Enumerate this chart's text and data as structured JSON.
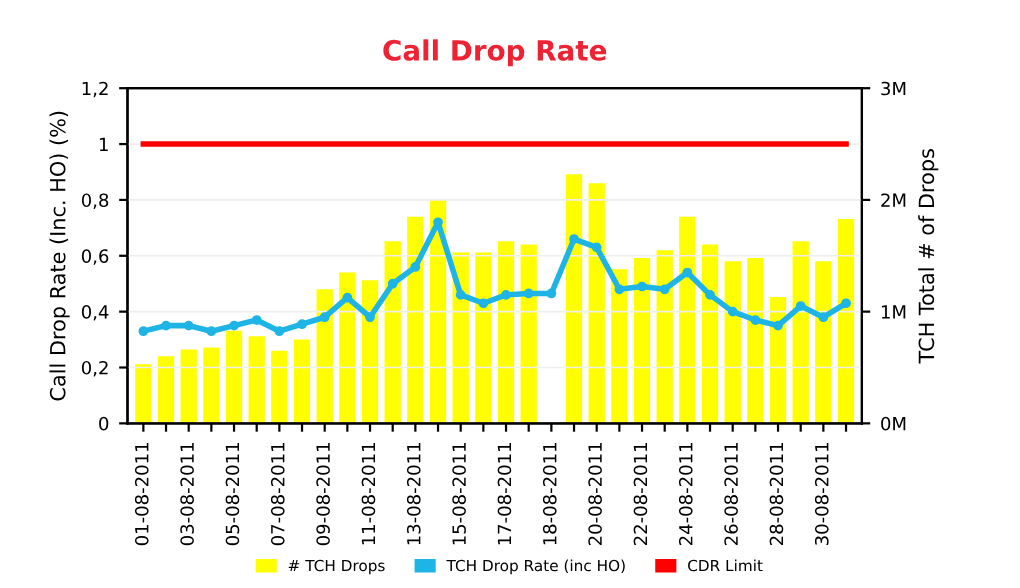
{
  "chart_data": {
    "type": "bar",
    "title": "Call Drop Rate",
    "categories": [
      "01-08-2011",
      null,
      "03-08-2011",
      null,
      "05-08-2011",
      null,
      "07-08-2011",
      null,
      "09-08-2011",
      null,
      "11-08-2011",
      null,
      "13-08-2011",
      null,
      "15-08-2011",
      null,
      "17-08-2011",
      null,
      "18-08-2011",
      null,
      "20-08-2011",
      null,
      "22-08-2011",
      null,
      "24-08-2011",
      null,
      "26-08-2011",
      null,
      "28-08-2011",
      null,
      "30-08-2011",
      null
    ],
    "ylabel": "Call Drop Rate (Inc. HO) (%)",
    "y2label": "TCH Total # of Drops",
    "series": [
      {
        "name": "# TCH Drops",
        "axis": "y2",
        "color": "#ffff00",
        "values": [
          0.53,
          0.6,
          0.66,
          0.68,
          0.83,
          0.78,
          0.65,
          0.75,
          1.2,
          1.35,
          1.28,
          1.63,
          1.85,
          2.0,
          1.53,
          1.53,
          1.63,
          1.6,
          null,
          2.23,
          2.15,
          1.38,
          1.48,
          1.55,
          1.85,
          1.6,
          1.45,
          1.48,
          1.13,
          1.63,
          1.45,
          1.83
        ]
      },
      {
        "name": "TCH Drop Rate (inc HO)",
        "type": "line",
        "marker": "circle",
        "color": "#1eb4e6",
        "values": [
          0.33,
          0.35,
          0.35,
          0.33,
          0.35,
          0.37,
          0.33,
          0.355,
          0.38,
          0.45,
          0.38,
          0.5,
          0.56,
          0.72,
          0.46,
          0.43,
          0.46,
          0.465,
          0.465,
          0.66,
          0.63,
          0.48,
          0.49,
          0.48,
          0.54,
          0.46,
          0.4,
          0.37,
          0.35,
          0.42,
          0.38,
          0.43
        ]
      },
      {
        "name": "CDR Limit",
        "type": "line",
        "marker": "none",
        "color": "#ff0000",
        "values": [
          1,
          1,
          1,
          1,
          1,
          1,
          1,
          1,
          1,
          1,
          1,
          1,
          1,
          1,
          1,
          1,
          1,
          1,
          1,
          1,
          1,
          1,
          1,
          1,
          1,
          1,
          1,
          1,
          1,
          1,
          1,
          1
        ]
      }
    ],
    "ylim": [
      0,
      1.2
    ],
    "yticks": [
      0,
      {
        "value": 0.2,
        "label": "0,2"
      },
      {
        "value": 0.4,
        "label": "0,4"
      },
      {
        "value": 0.6,
        "label": "0,6"
      },
      {
        "value": 0.8,
        "label": "0,8"
      },
      1,
      {
        "value": 1.2,
        "label": "1,2"
      }
    ],
    "y2lim": [
      0,
      3
    ],
    "y2ticks": [
      {
        "value": 0,
        "label": "0M"
      },
      {
        "value": 1,
        "label": "1M"
      },
      {
        "value": 2,
        "label": "2M"
      },
      {
        "value": 3,
        "label": "3M"
      }
    ],
    "grid": true,
    "legend": "bottom"
  }
}
